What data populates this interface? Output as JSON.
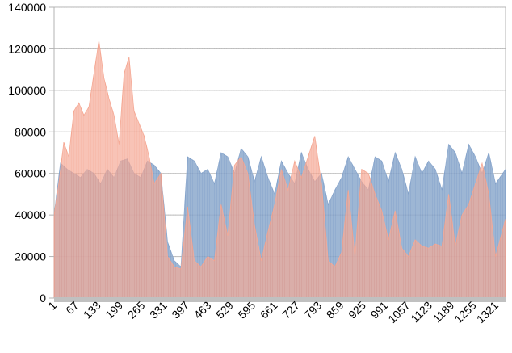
{
  "chart_data": {
    "type": "area",
    "title": "",
    "xlabel": "",
    "ylabel": "",
    "ylim": [
      0,
      140000
    ],
    "yticks": [
      0,
      20000,
      40000,
      60000,
      80000,
      100000,
      120000,
      140000
    ],
    "xlim": [
      1,
      1350
    ],
    "xticks": [
      1,
      67,
      133,
      199,
      265,
      331,
      397,
      463,
      529,
      595,
      661,
      727,
      793,
      859,
      925,
      991,
      1057,
      1123,
      1189,
      1255,
      1321
    ],
    "grid": true,
    "legend": "none",
    "series": [
      {
        "color": "#7f9fc8",
        "x": [
          1,
          20,
          40,
          60,
          80,
          100,
          120,
          140,
          160,
          180,
          200,
          220,
          240,
          260,
          280,
          300,
          320,
          340,
          360,
          380,
          400,
          420,
          440,
          460,
          480,
          500,
          520,
          540,
          560,
          580,
          600,
          620,
          640,
          660,
          680,
          700,
          720,
          740,
          760,
          780,
          800,
          820,
          840,
          860,
          880,
          900,
          920,
          940,
          960,
          980,
          1000,
          1020,
          1040,
          1060,
          1080,
          1100,
          1120,
          1140,
          1160,
          1180,
          1200,
          1220,
          1240,
          1260,
          1280,
          1300,
          1320,
          1350
        ],
        "y": [
          40000,
          65000,
          62000,
          60000,
          58000,
          62000,
          60000,
          55000,
          62000,
          58000,
          66000,
          67000,
          60000,
          58000,
          66000,
          64000,
          60000,
          27000,
          18000,
          15000,
          68000,
          66000,
          60000,
          62000,
          55000,
          70000,
          68000,
          60000,
          72000,
          68000,
          56000,
          68000,
          58000,
          50000,
          66000,
          60000,
          55000,
          70000,
          62000,
          56000,
          60000,
          45000,
          52000,
          58000,
          68000,
          62000,
          56000,
          52000,
          68000,
          66000,
          56000,
          70000,
          62000,
          50000,
          68000,
          60000,
          66000,
          62000,
          52000,
          74000,
          70000,
          60000,
          74000,
          68000,
          60000,
          70000,
          55000,
          62000
        ]
      },
      {
        "color": "#f4a08a",
        "x": [
          1,
          15,
          30,
          45,
          60,
          75,
          90,
          105,
          120,
          135,
          150,
          165,
          180,
          195,
          210,
          225,
          240,
          255,
          270,
          285,
          300,
          320,
          340,
          360,
          380,
          400,
          420,
          440,
          460,
          480,
          500,
          520,
          540,
          560,
          580,
          600,
          620,
          640,
          660,
          680,
          700,
          720,
          740,
          760,
          780,
          800,
          820,
          840,
          860,
          880,
          900,
          920,
          940,
          960,
          980,
          1000,
          1020,
          1040,
          1060,
          1080,
          1100,
          1120,
          1140,
          1160,
          1180,
          1200,
          1220,
          1240,
          1260,
          1280,
          1300,
          1320,
          1350
        ],
        "y": [
          40000,
          55000,
          75000,
          68000,
          90000,
          94000,
          88000,
          92000,
          108000,
          124000,
          106000,
          96000,
          88000,
          74000,
          108000,
          116000,
          90000,
          84000,
          78000,
          68000,
          55000,
          60000,
          20000,
          15000,
          14000,
          44000,
          18000,
          15000,
          20000,
          18000,
          45000,
          30000,
          64000,
          68000,
          60000,
          35000,
          18000,
          32000,
          45000,
          62000,
          52000,
          66000,
          58000,
          68000,
          78000,
          55000,
          18000,
          15000,
          22000,
          52000,
          20000,
          62000,
          60000,
          50000,
          42000,
          28000,
          42000,
          24000,
          20000,
          28000,
          25000,
          24000,
          26000,
          25000,
          50000,
          25000,
          40000,
          45000,
          55000,
          65000,
          50000,
          20000,
          38000
        ]
      }
    ]
  }
}
